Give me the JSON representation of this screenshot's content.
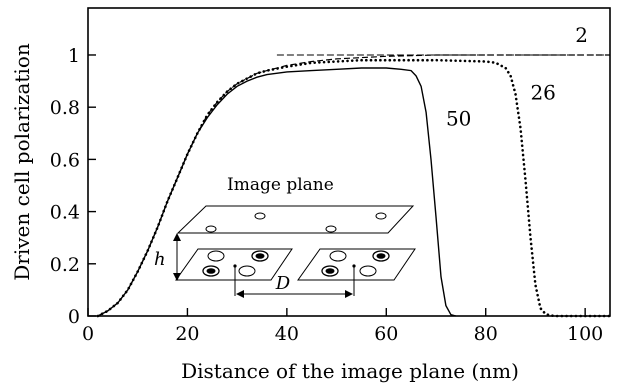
{
  "chart_data": {
    "type": "line",
    "xlabel": "Distance of the image plane  (nm)",
    "ylabel": "Driven cell polarization",
    "xlim": [
      0,
      105
    ],
    "ylim": [
      0,
      1.18
    ],
    "xticks": [
      0,
      20,
      40,
      60,
      80,
      100
    ],
    "yticks": [
      0,
      0.2,
      0.4,
      0.6,
      0.8,
      1
    ],
    "xtick_labels": [
      "0",
      "20",
      "40",
      "60",
      "80",
      "100"
    ],
    "ytick_labels": [
      "0",
      "0.2",
      "0.4",
      "0.6",
      "0.8",
      "1"
    ],
    "grid": false,
    "series": [
      {
        "name": "2",
        "style": "dashed",
        "x": [
          2,
          4,
          6,
          8,
          10,
          12,
          14,
          16,
          18,
          20,
          22,
          24,
          26,
          28,
          30,
          32,
          34,
          36,
          40,
          45,
          50,
          55,
          60,
          70,
          80,
          90,
          105
        ],
        "y": [
          0.0,
          0.02,
          0.05,
          0.1,
          0.17,
          0.25,
          0.34,
          0.44,
          0.53,
          0.62,
          0.7,
          0.77,
          0.82,
          0.86,
          0.89,
          0.91,
          0.93,
          0.94,
          0.96,
          0.975,
          0.985,
          0.99,
          0.995,
          1.0,
          1.0,
          1.0,
          1.0
        ]
      },
      {
        "name": "26",
        "style": "dotted",
        "x": [
          2,
          4,
          6,
          8,
          10,
          12,
          14,
          16,
          18,
          20,
          22,
          24,
          26,
          28,
          30,
          32,
          34,
          36,
          40,
          45,
          50,
          55,
          60,
          70,
          80,
          82,
          84,
          85,
          86,
          87,
          88,
          89,
          90,
          91,
          92,
          93,
          94,
          105
        ],
        "y": [
          0.0,
          0.02,
          0.05,
          0.1,
          0.17,
          0.25,
          0.34,
          0.44,
          0.53,
          0.62,
          0.7,
          0.77,
          0.82,
          0.86,
          0.89,
          0.91,
          0.93,
          0.94,
          0.955,
          0.97,
          0.975,
          0.98,
          0.98,
          0.98,
          0.975,
          0.97,
          0.95,
          0.92,
          0.85,
          0.72,
          0.52,
          0.3,
          0.12,
          0.03,
          0.008,
          0.002,
          0.0,
          0.0
        ]
      },
      {
        "name": "50",
        "style": "solid",
        "x": [
          2,
          4,
          6,
          8,
          10,
          12,
          14,
          16,
          18,
          20,
          22,
          24,
          26,
          28,
          30,
          32,
          34,
          36,
          40,
          45,
          50,
          55,
          60,
          63,
          65,
          66,
          67,
          68,
          69,
          70,
          71,
          72,
          73,
          74
        ],
        "y": [
          0.0,
          0.02,
          0.05,
          0.1,
          0.17,
          0.25,
          0.34,
          0.44,
          0.53,
          0.62,
          0.7,
          0.76,
          0.81,
          0.85,
          0.88,
          0.9,
          0.915,
          0.925,
          0.935,
          0.94,
          0.945,
          0.95,
          0.95,
          0.945,
          0.94,
          0.92,
          0.88,
          0.78,
          0.6,
          0.38,
          0.15,
          0.04,
          0.005,
          0.0
        ]
      }
    ],
    "reference_line": {
      "y": 1.0,
      "x_from": 38,
      "x_to": 105,
      "style": "dashed"
    },
    "annotations": [
      {
        "text": "2",
        "x": 98,
        "y": 1.05
      },
      {
        "text": "26",
        "x": 89,
        "y": 0.83
      },
      {
        "text": "50",
        "x": 72,
        "y": 0.73
      }
    ]
  },
  "inset": {
    "title": "Image plane",
    "height_label": "h",
    "distance_label": "D"
  }
}
